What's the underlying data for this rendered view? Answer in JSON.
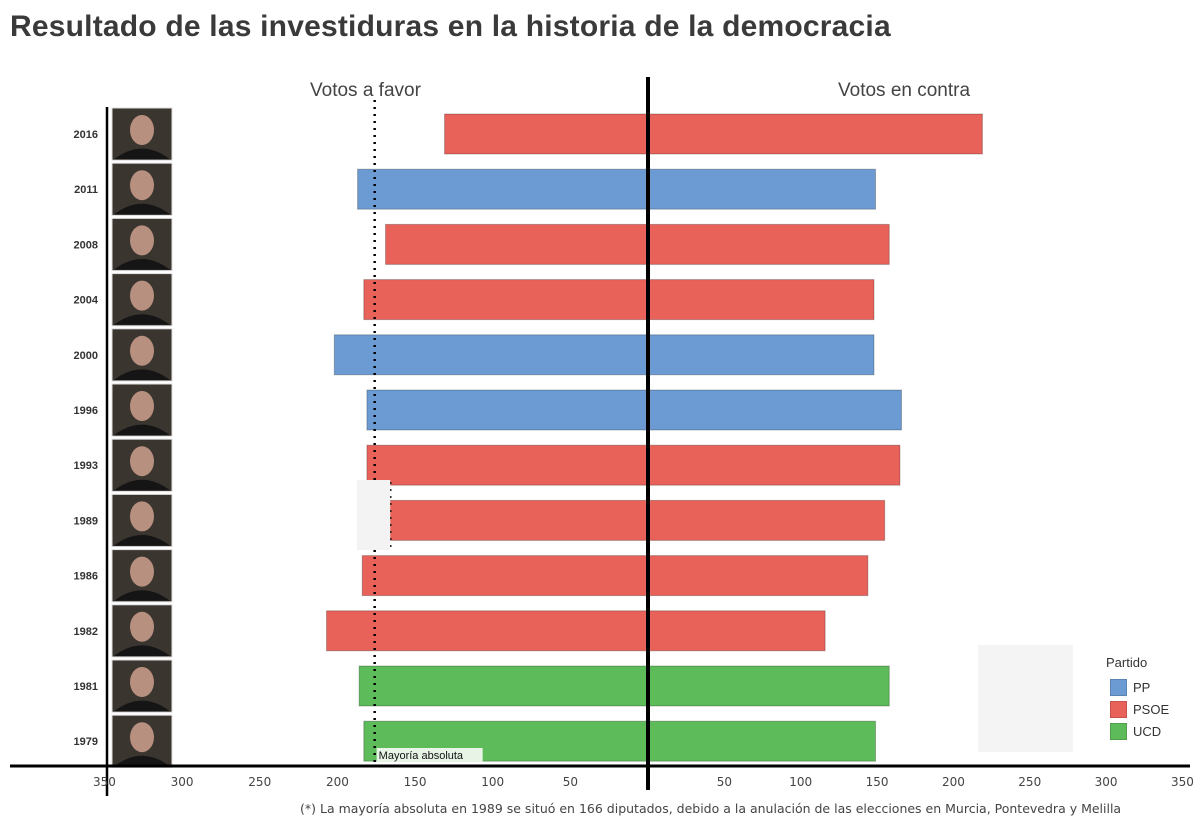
{
  "chart_data": {
    "type": "bar",
    "orientation": "horizontal-diverging",
    "title": "Resultado de las investiduras en la historia de la democracia",
    "left_label": "Votos a favor",
    "right_label": "Votos en contra",
    "categories": [
      "2016",
      "2011",
      "2008",
      "2004",
      "2000",
      "1996",
      "1993",
      "1989",
      "1986",
      "1982",
      "1981",
      "1979"
    ],
    "party": [
      "PSOE",
      "PP",
      "PSOE",
      "PSOE",
      "PP",
      "PP",
      "PSOE",
      "PSOE",
      "PSOE",
      "PSOE",
      "UCD",
      "UCD"
    ],
    "series": [
      {
        "name": "Votos a favor",
        "values": [
          131,
          187,
          169,
          183,
          202,
          181,
          181,
          167,
          184,
          207,
          186,
          183
        ]
      },
      {
        "name": "Votos en contra",
        "values": [
          219,
          149,
          158,
          148,
          148,
          166,
          165,
          155,
          144,
          116,
          158,
          149
        ]
      }
    ],
    "xlim": [
      0,
      350
    ],
    "left_ticks": [
      "350",
      "300",
      "250",
      "200",
      "150",
      "100",
      "50"
    ],
    "right_ticks": [
      "50",
      "100",
      "150",
      "200",
      "250",
      "300",
      "350"
    ],
    "tick_values": [
      350,
      300,
      250,
      200,
      150,
      100,
      50
    ],
    "right_tick_values": [
      50,
      100,
      150,
      200,
      250,
      300,
      350
    ],
    "majority_line": {
      "value": 176,
      "label": "Mayoría absoluta"
    },
    "majority_1989": {
      "value": 166
    },
    "legend": {
      "title": "Partido",
      "position": "bottom-right",
      "items": [
        {
          "name": "PP",
          "color": "#6b9bd2"
        },
        {
          "name": "PSOE",
          "color": "#e8625a"
        },
        {
          "name": "UCD",
          "color": "#5dbb5a"
        }
      ]
    },
    "footnote": "(*) La mayoría absoluta en 1989 se situó en 166 diputados, debido a la anulación de las elecciones en Murcia, Pontevedra y Melilla",
    "grid": false
  },
  "colors": {
    "PP": "#6b9bd2",
    "PSOE": "#e8625a",
    "UCD": "#5dbb5a"
  }
}
